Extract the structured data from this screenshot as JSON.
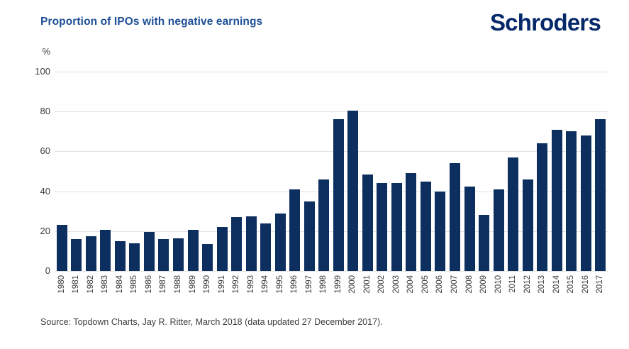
{
  "header": {
    "title": "Proportion of IPOs with negative earnings",
    "logo_text": "Schroders"
  },
  "chart_data": {
    "type": "bar",
    "title": "Proportion of IPOs with negative earnings",
    "unit_label": "%",
    "xlabel": "",
    "ylabel": "%",
    "ylim": [
      0,
      100
    ],
    "yticks": [
      0,
      20,
      40,
      60,
      80,
      100
    ],
    "grid": true,
    "legend_position": "none",
    "x_tick_rotation": 90,
    "categories": [
      "1980",
      "1981",
      "1982",
      "1983",
      "1984",
      "1985",
      "1986",
      "1987",
      "1988",
      "1989",
      "1990",
      "1991",
      "1992",
      "1993",
      "1994",
      "1995",
      "1996",
      "1997",
      "1998",
      "1999",
      "2000",
      "2001",
      "2002",
      "2003",
      "2004",
      "2005",
      "2006",
      "2007",
      "2008",
      "2009",
      "2010",
      "2011",
      "2012",
      "2013",
      "2014",
      "2015",
      "2016",
      "2017"
    ],
    "values": [
      23,
      16,
      17.5,
      20.5,
      15,
      14,
      19.5,
      16,
      16.5,
      20.5,
      13.5,
      22,
      27,
      27.5,
      24,
      29,
      41,
      35,
      46,
      76,
      80.5,
      48.5,
      44,
      44,
      49,
      45,
      40,
      54,
      42.5,
      28,
      41,
      57,
      46,
      64,
      71,
      70,
      68,
      76
    ]
  },
  "footer": {
    "source": "Source: Topdown Charts, Jay R. Ritter, March 2018 (data updated 27 December 2017)."
  },
  "colors": {
    "bar": "#0d2f5f",
    "title": "#1e4f96",
    "logo": "#04286a",
    "grid": "#e2e2e2",
    "axis_text": "#3c3c3c",
    "source_text": "#3d3d3d",
    "background": "#ffffff"
  }
}
